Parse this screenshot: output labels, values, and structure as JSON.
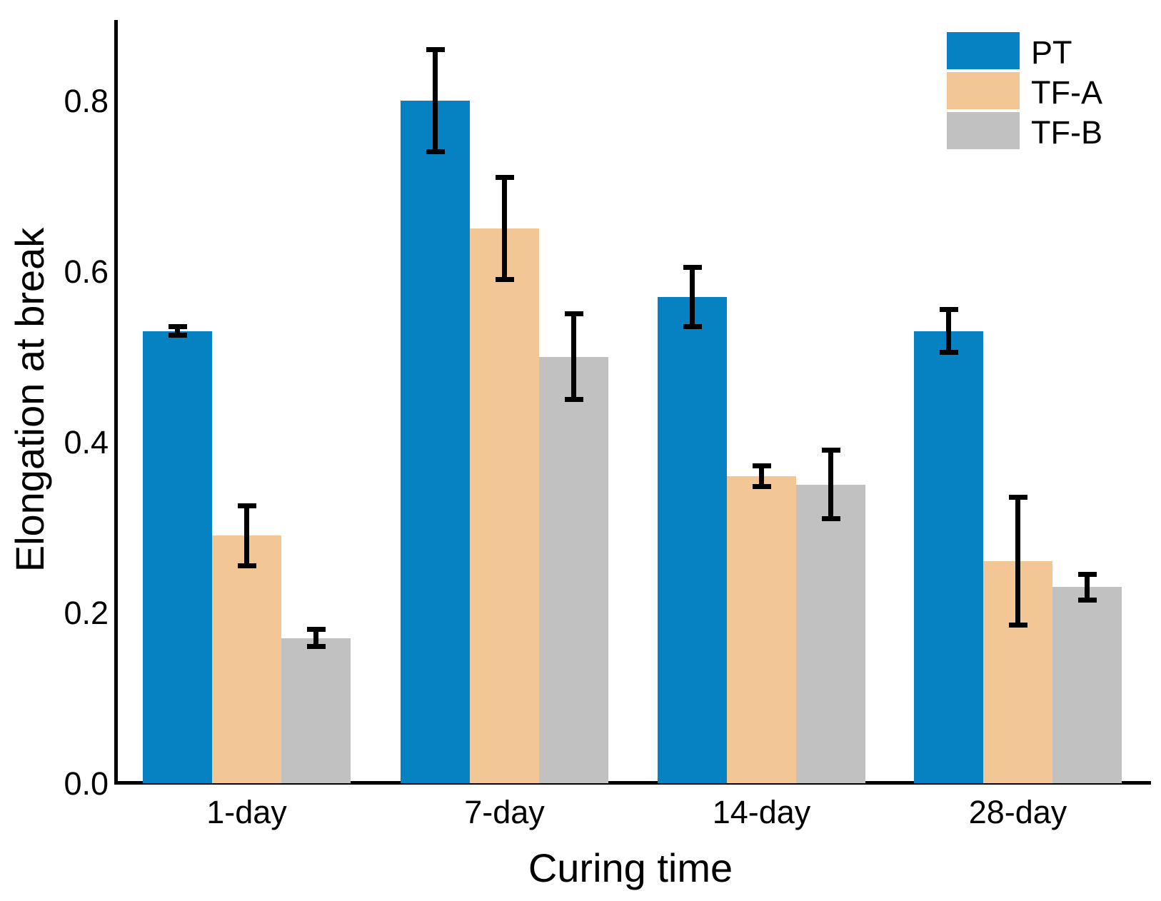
{
  "chart_data": {
    "type": "bar",
    "title": "",
    "xlabel": "Curing time",
    "ylabel": "Elongation at break",
    "categories": [
      "1-day",
      "7-day",
      "14-day",
      "28-day"
    ],
    "series": [
      {
        "name": "PT",
        "color": "#0681c1",
        "values": [
          0.53,
          0.8,
          0.57,
          0.53
        ],
        "errors": [
          0.005,
          0.06,
          0.035,
          0.025
        ]
      },
      {
        "name": "TF-A",
        "color": "#f2c795",
        "values": [
          0.29,
          0.65,
          0.36,
          0.26
        ],
        "errors": [
          0.035,
          0.06,
          0.012,
          0.075
        ]
      },
      {
        "name": "TF-B",
        "color": "#c1c1c1",
        "values": [
          0.17,
          0.5,
          0.35,
          0.23
        ],
        "errors": [
          0.01,
          0.05,
          0.04,
          0.015
        ]
      }
    ],
    "ylim": [
      0,
      0.9
    ],
    "yticks": [
      0.0,
      0.2,
      0.4,
      0.6,
      0.8
    ],
    "ytick_labels": [
      "0.0",
      "0.2",
      "0.4",
      "0.6",
      "0.8"
    ],
    "error_bars": true,
    "grid": false,
    "legend_position": "top-right",
    "legend_entries": [
      "PT",
      "TF-A",
      "TF-B"
    ]
  },
  "colors": {
    "axis": "#000000",
    "text": "#000000",
    "background": "#ffffff",
    "pt_blue": "#0681c1",
    "tfa_tan": "#f2c795",
    "tfb_gray": "#c1c1c1"
  }
}
